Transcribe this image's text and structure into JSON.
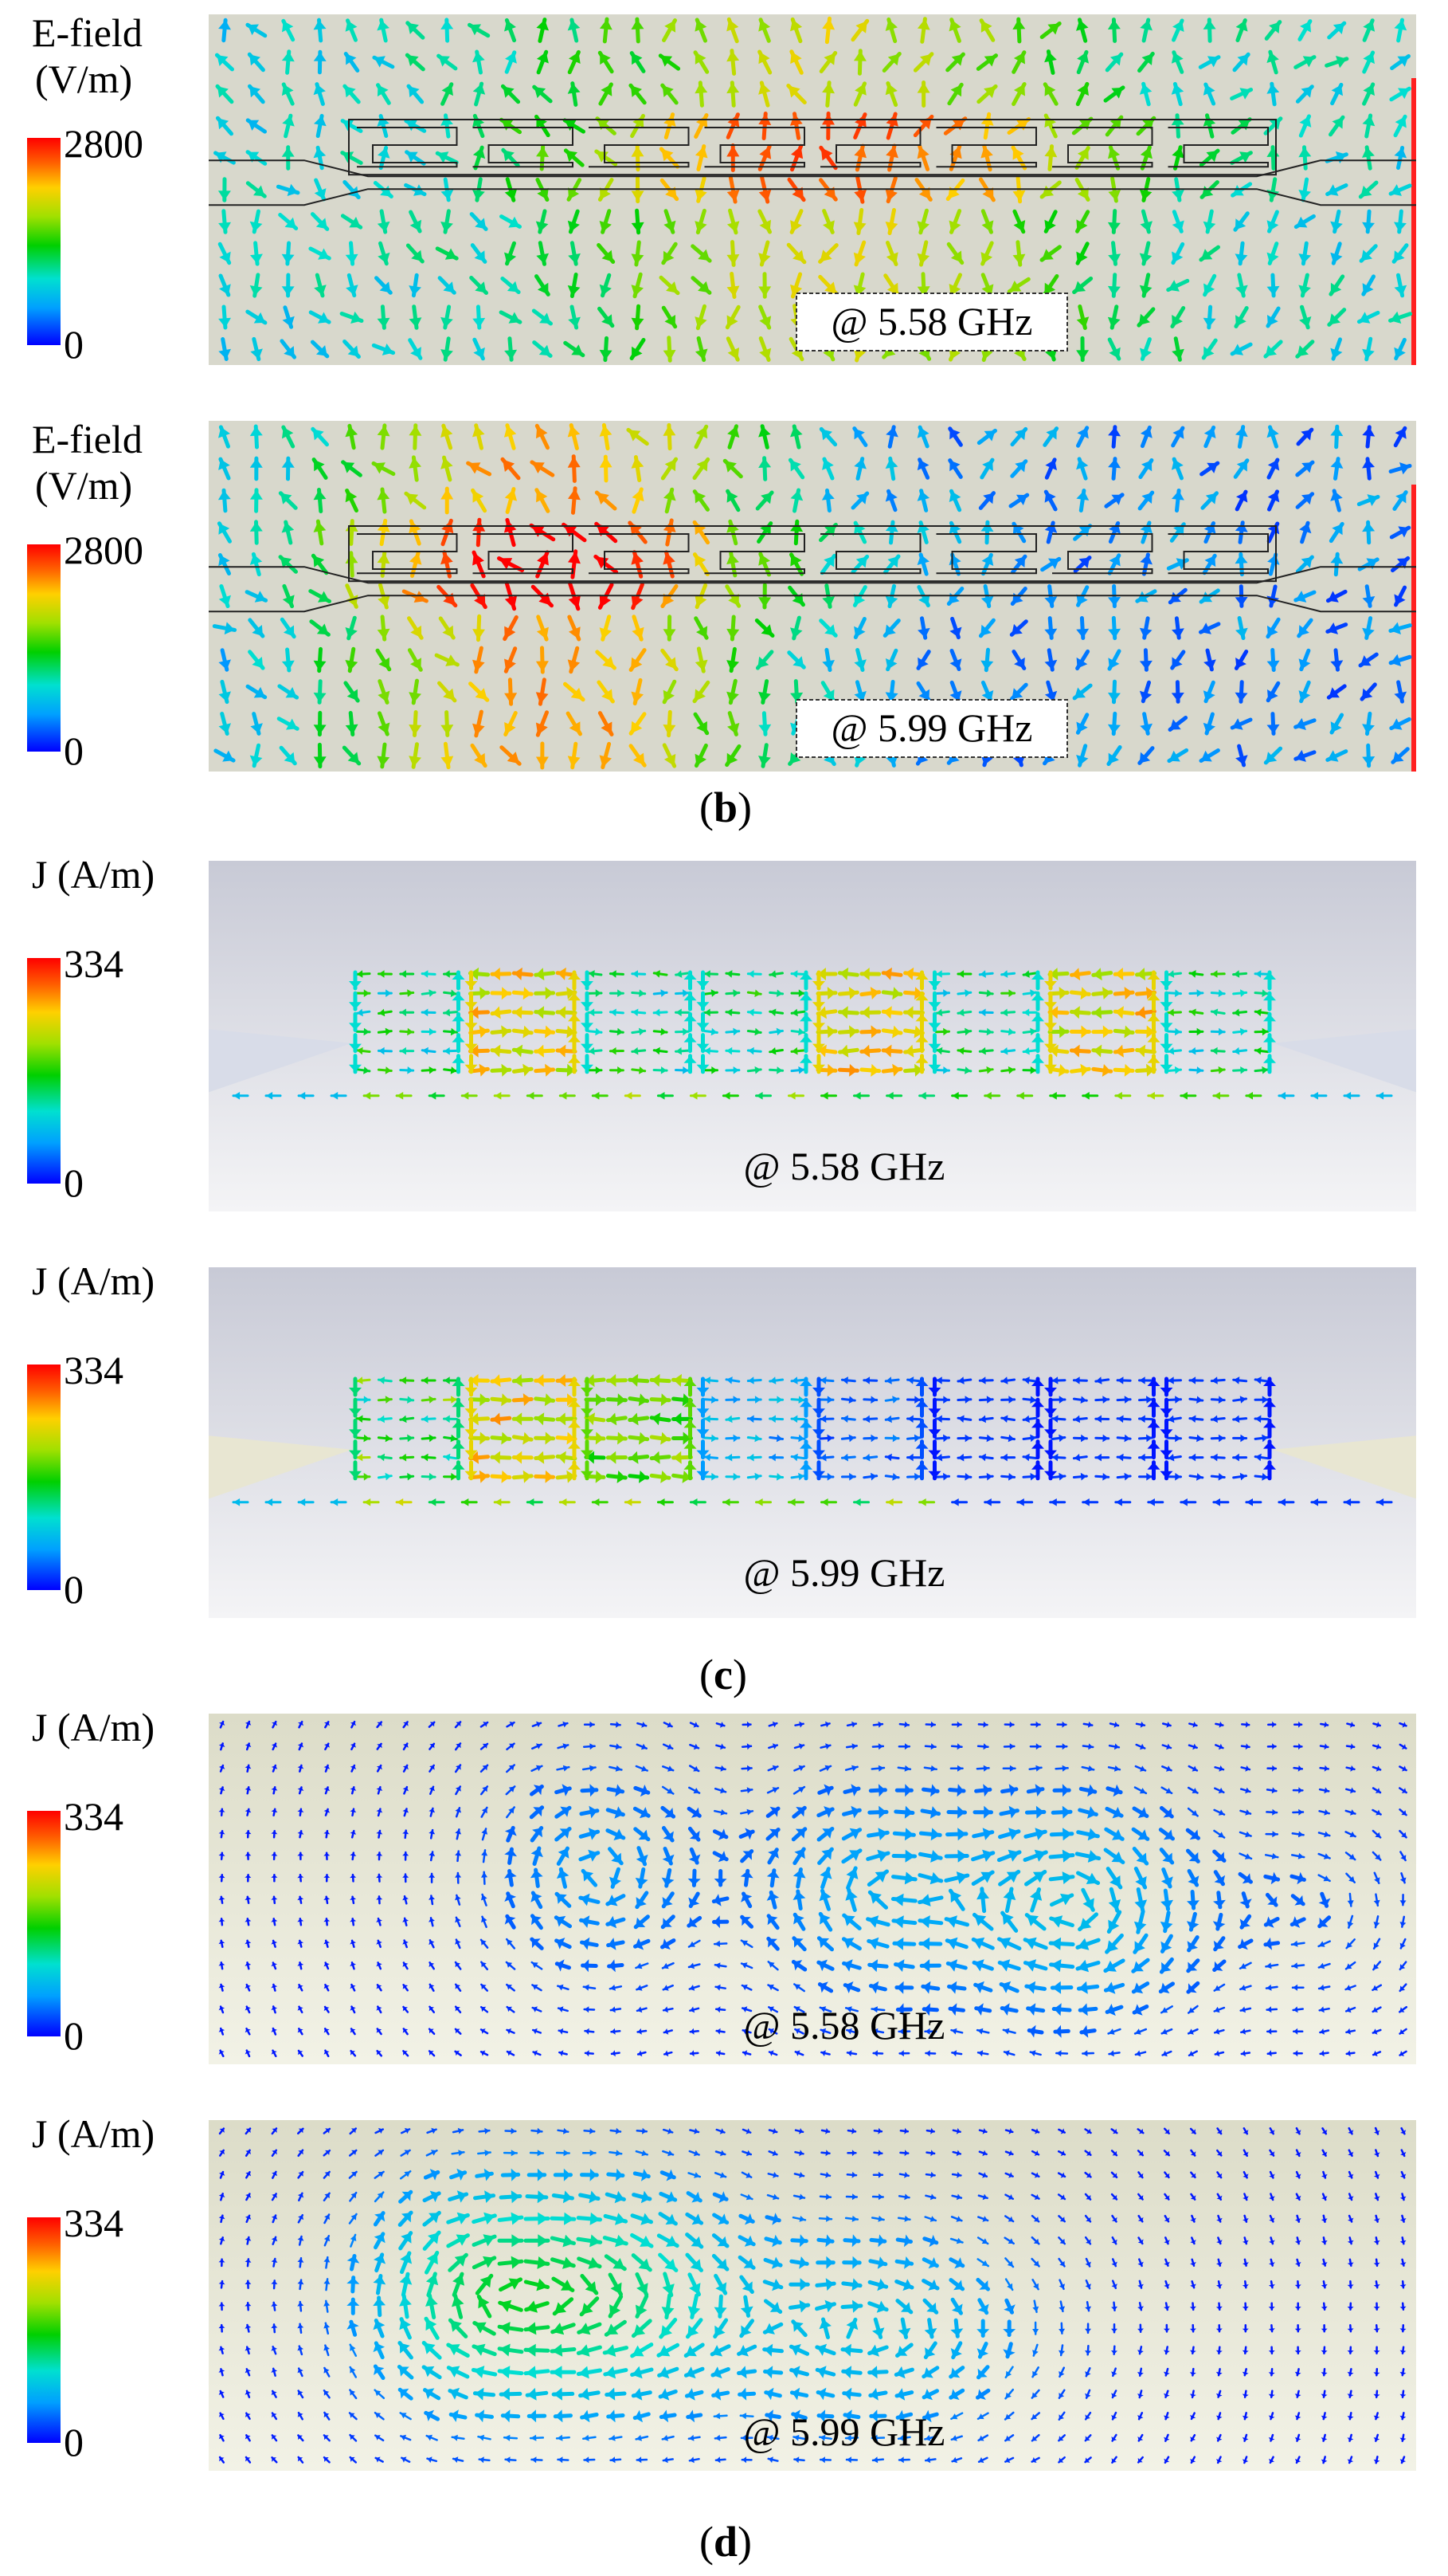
{
  "colorbar_gradient": [
    "#0000ff",
    "#00a0ff",
    "#00e0d0",
    "#00d000",
    "#a0e000",
    "#ffd000",
    "#ff6000",
    "#ff0000"
  ],
  "panels": [
    {
      "id": "b1",
      "title_line1": "E-field",
      "title_line2": "(V/m)",
      "max": "2800",
      "min": "0",
      "freq": "@ 5.58 GHz",
      "freq_boxed": true,
      "kind": "efield",
      "background": "#d8d8cc"
    },
    {
      "id": "b2",
      "title_line1": "E-field",
      "title_line2": "(V/m)",
      "max": "2800",
      "min": "0",
      "freq": "@ 5.99 GHz",
      "freq_boxed": true,
      "kind": "efield",
      "background": "#d8d8cc"
    },
    {
      "id": "c1",
      "title_line1": "J (A/m)",
      "title_line2": "",
      "max": "334",
      "min": "0",
      "freq": "@ 5.58 GHz",
      "freq_boxed": false,
      "kind": "current",
      "background": "#e6e8ee"
    },
    {
      "id": "c2",
      "title_line1": "J (A/m)",
      "title_line2": "",
      "max": "334",
      "min": "0",
      "freq": "@ 5.99 GHz",
      "freq_boxed": false,
      "kind": "current",
      "background": "#e6e8ee"
    },
    {
      "id": "d1",
      "title_line1": "J (A/m)",
      "title_line2": "",
      "max": "334",
      "min": "0",
      "freq": "@ 5.58 GHz",
      "freq_boxed": false,
      "kind": "surface",
      "background": "#e8e8da"
    },
    {
      "id": "d2",
      "title_line1": "J (A/m)",
      "title_line2": "",
      "max": "334",
      "min": "0",
      "freq": "@ 5.99 GHz",
      "freq_boxed": false,
      "kind": "surface",
      "background": "#e8e8da"
    }
  ],
  "captions": {
    "b": "b",
    "c": "c",
    "d": "d"
  }
}
